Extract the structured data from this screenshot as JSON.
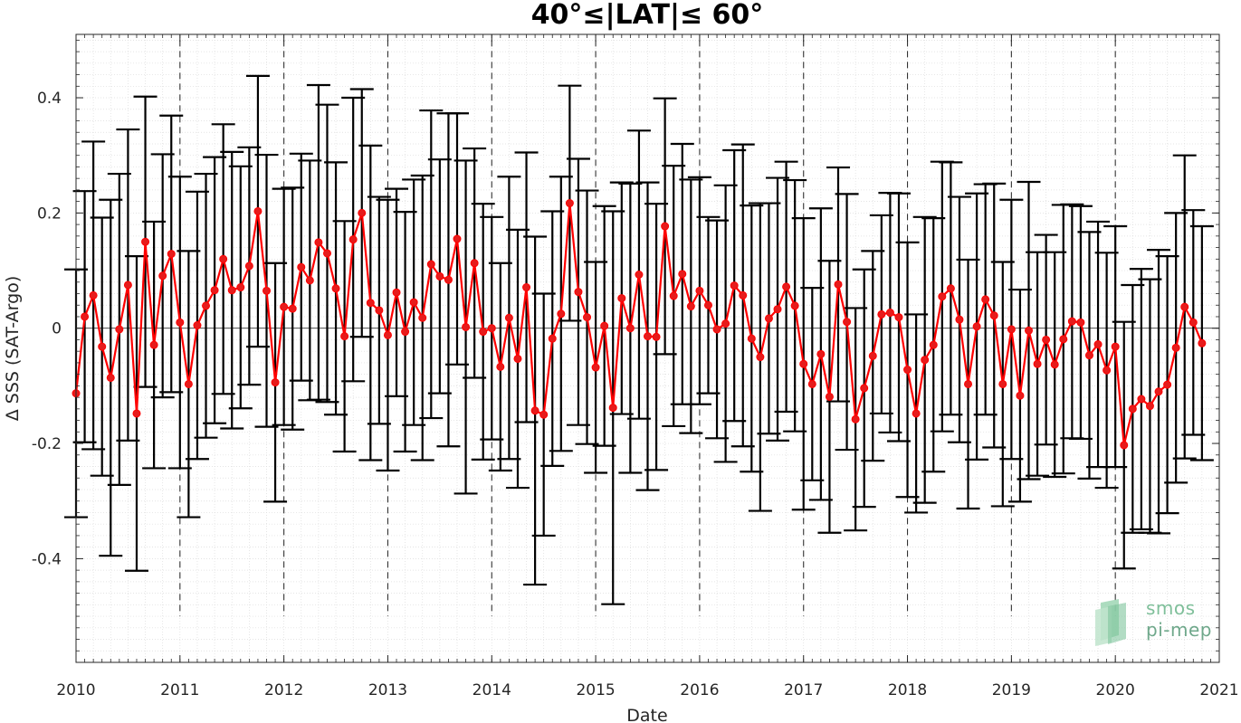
{
  "chart_data": {
    "type": "line",
    "title": "40°≤|LAT|≤ 60°",
    "xlabel": "Date",
    "ylabel": "Δ SSS (SAT-Argo)",
    "xlim": [
      2010,
      2021
    ],
    "ylim": [
      -0.58,
      0.51
    ],
    "x_ticks": [
      "2010",
      "2011",
      "2012",
      "2013",
      "2014",
      "2015",
      "2016",
      "2017",
      "2018",
      "2019",
      "2020",
      "2021"
    ],
    "y_ticks": [
      {
        "value": 0.4,
        "label": "0.4"
      },
      {
        "value": 0.2,
        "label": "0.2"
      },
      {
        "value": 0,
        "label": "0"
      },
      {
        "value": -0.2,
        "label": "-0.2"
      },
      {
        "value": -0.4,
        "label": "-0.4"
      }
    ],
    "grid": true,
    "year_markers": [
      2011,
      2012,
      2013,
      2014,
      2015,
      2016,
      2017,
      2018,
      2019,
      2020
    ],
    "zero_line": true,
    "colors": {
      "line": "#ff0000",
      "marker": "#e61c1c",
      "errorbar": "#000000"
    },
    "series": [
      {
        "start_year": 2010,
        "start_month": 1,
        "values": [
          -0.113,
          0.02,
          0.057,
          -0.032,
          -0.086,
          -0.002,
          0.075,
          -0.148,
          0.15,
          -0.029,
          0.091,
          0.129,
          0.01,
          -0.097,
          0.005,
          0.039,
          0.066,
          0.12,
          0.066,
          0.071,
          0.108,
          0.203,
          0.065,
          -0.094,
          0.037,
          0.034,
          0.106,
          0.083,
          0.149,
          0.13,
          0.069,
          -0.014,
          0.154,
          0.2,
          0.044,
          0.031,
          -0.012,
          0.062,
          -0.006,
          0.045,
          0.018,
          0.111,
          0.09,
          0.084,
          0.155,
          0.002,
          0.113,
          -0.006,
          0.0,
          -0.067,
          0.018,
          -0.053,
          0.071,
          -0.143,
          -0.15,
          -0.018,
          0.025,
          0.217,
          0.063,
          0.019,
          -0.068,
          0.004,
          -0.138,
          0.052,
          0.0,
          0.093,
          -0.014,
          -0.015,
          0.177,
          0.056,
          0.094,
          0.038,
          0.065,
          0.04,
          -0.002,
          0.008,
          0.074,
          0.057,
          -0.018,
          -0.05,
          0.017,
          0.033,
          0.072,
          0.039,
          -0.062,
          -0.097,
          -0.045,
          -0.119,
          0.076,
          0.011,
          -0.158,
          -0.104,
          -0.048,
          0.024,
          0.027,
          0.019,
          -0.072,
          -0.148,
          -0.055,
          -0.029,
          0.055,
          0.069,
          0.015,
          -0.097,
          0.003,
          0.05,
          0.022,
          -0.097,
          -0.002,
          -0.117,
          -0.004,
          -0.062,
          -0.02,
          -0.063,
          -0.019,
          0.012,
          0.01,
          -0.047,
          -0.028,
          -0.073,
          -0.032,
          -0.203,
          -0.14,
          -0.123,
          -0.135,
          -0.11,
          -0.098,
          -0.034,
          0.037,
          0.01,
          -0.026
        ],
        "errors": [
          0.215,
          0.218,
          0.267,
          0.224,
          0.309,
          0.27,
          0.27,
          0.273,
          0.252,
          0.214,
          0.211,
          0.24,
          0.253,
          0.231,
          0.232,
          0.229,
          0.231,
          0.234,
          0.24,
          0.21,
          0.206,
          0.235,
          0.236,
          0.207,
          0.205,
          0.21,
          0.197,
          0.208,
          0.273,
          0.258,
          0.219,
          0.2,
          0.246,
          0.215,
          0.273,
          0.197,
          0.235,
          0.18,
          0.208,
          0.213,
          0.247,
          0.267,
          0.203,
          0.289,
          0.218,
          0.289,
          0.199,
          0.222,
          0.193,
          0.18,
          0.245,
          0.224,
          0.234,
          0.302,
          0.21,
          0.221,
          0.238,
          0.204,
          0.231,
          0.22,
          0.183,
          0.208,
          0.341,
          0.201,
          0.251,
          0.25,
          0.267,
          0.231,
          0.222,
          0.226,
          0.226,
          0.22,
          0.197,
          0.153,
          0.189,
          0.24,
          0.235,
          0.262,
          0.231,
          0.267,
          0.2,
          0.228,
          0.217,
          0.218,
          0.253,
          0.167,
          0.253,
          0.236,
          0.203,
          0.222,
          0.193,
          0.206,
          0.182,
          0.172,
          0.208,
          0.215,
          0.221,
          0.172,
          0.248,
          0.22,
          0.234,
          0.219,
          0.213,
          0.216,
          0.231,
          0.2,
          0.229,
          0.212,
          0.225,
          0.184,
          0.258,
          0.194,
          0.182,
          0.195,
          0.233,
          0.203,
          0.202,
          0.214,
          0.213,
          0.204,
          0.209,
          0.214,
          0.215,
          0.226,
          0.22,
          0.246,
          0.223,
          0.234,
          0.263,
          0.195,
          0.203
        ]
      }
    ]
  },
  "watermark": {
    "line1": "smos",
    "line2": "pi-mep"
  }
}
